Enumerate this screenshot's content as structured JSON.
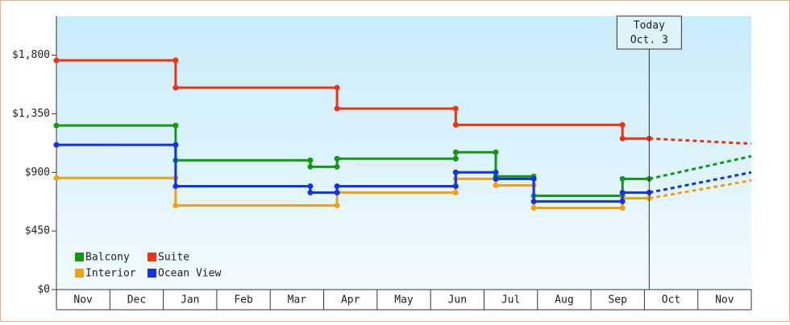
{
  "chart_data": {
    "type": "line",
    "step": true,
    "categories": [
      "Nov",
      "Dec",
      "Jan",
      "Feb",
      "Mar",
      "Apr",
      "May",
      "Jun",
      "Jul",
      "Aug",
      "Sep",
      "Oct",
      "Nov"
    ],
    "xlim": [
      0,
      13
    ],
    "ylim": [
      0,
      2100
    ],
    "yticks": [
      {
        "value": 0,
        "label": "$0"
      },
      {
        "value": 450,
        "label": "$450"
      },
      {
        "value": 900,
        "label": "$900"
      },
      {
        "value": 1350,
        "label": "$1,350"
      },
      {
        "value": 1800,
        "label": "$1,800"
      }
    ],
    "series": [
      {
        "name": "Balcony",
        "color": "#119911",
        "x": [
          0,
          2.23,
          2.23,
          4.75,
          4.75,
          5.25,
          5.25,
          7.47,
          7.47,
          8.22,
          8.22,
          8.93,
          8.93,
          10.59,
          10.59,
          11.09
        ],
        "values": [
          1260,
          1260,
          993,
          993,
          943,
          943,
          1005,
          1005,
          1055,
          1055,
          869,
          869,
          720,
          720,
          850,
          850
        ],
        "forecast": {
          "x": [
            11.09,
            13
          ],
          "values": [
            850,
            1024
          ]
        }
      },
      {
        "name": "Suite",
        "color": "#ee3311",
        "x": [
          0,
          2.23,
          2.23,
          5.25,
          5.25,
          7.47,
          7.47,
          10.59,
          10.59,
          11.09
        ],
        "values": [
          1760,
          1760,
          1550,
          1550,
          1390,
          1390,
          1265,
          1265,
          1160,
          1160
        ],
        "forecast": {
          "x": [
            11.09,
            13
          ],
          "values": [
            1160,
            1120
          ]
        }
      },
      {
        "name": "Interior",
        "color": "#f0a010",
        "x": [
          0,
          2.23,
          2.23,
          5.25,
          5.25,
          7.47,
          7.47,
          8.22,
          8.22,
          8.93,
          8.93,
          10.59,
          10.59,
          11.09
        ],
        "values": [
          857,
          857,
          646,
          646,
          745,
          745,
          850,
          850,
          801,
          801,
          627,
          627,
          701,
          701
        ],
        "forecast": {
          "x": [
            11.09,
            13
          ],
          "values": [
            701,
            838
          ]
        }
      },
      {
        "name": "Ocean View",
        "color": "#1133ee",
        "x": [
          0,
          2.23,
          2.23,
          4.75,
          4.75,
          5.25,
          5.25,
          7.47,
          7.47,
          8.22,
          8.22,
          8.93,
          8.93,
          10.59,
          10.59,
          11.09
        ],
        "values": [
          1111,
          1111,
          794,
          794,
          745,
          745,
          794,
          794,
          900,
          900,
          850,
          850,
          677,
          677,
          745,
          745
        ],
        "forecast": {
          "x": [
            11.09,
            13
          ],
          "values": [
            745,
            900
          ]
        }
      }
    ],
    "annotation": {
      "lines": [
        "Today",
        "Oct. 3"
      ],
      "x": 11.09
    }
  }
}
